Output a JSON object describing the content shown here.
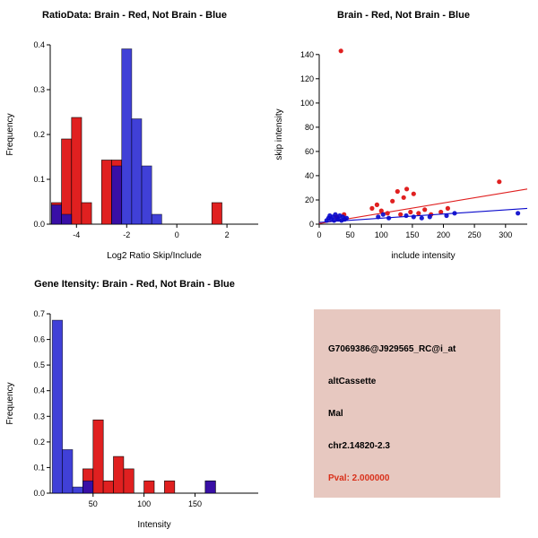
{
  "window": {
    "background": "#ffffff"
  },
  "colors": {
    "brain_red": "#E02020",
    "not_brain_blue": "#0A0ACC",
    "axis_black": "#000000",
    "pval_red": "#D9301A",
    "info_panel_bg": "#E7C8C0"
  },
  "chart_data": [
    {
      "id": "ratio-histogram",
      "type": "bar",
      "title": "RatioData: Brain - Red, Not Brain - Blue",
      "xlabel": "Log2 Ratio Skip/Include",
      "ylabel": "Frequency",
      "xlim": [
        -5.05,
        3.25
      ],
      "ylim": [
        0,
        0.4
      ],
      "xticks": [
        "-4",
        "-2",
        "0",
        "2"
      ],
      "yticks": [
        "0.0",
        "0.1",
        "0.2",
        "0.3",
        "0.4"
      ],
      "grid": false,
      "legend": "none (encoded in title: Brain=red, Not Brain=blue)",
      "series": [
        {
          "name": "Brain (red)",
          "color": "#E02020",
          "opacity": 1,
          "bars": [
            {
              "x0": -5.0,
              "x1": -4.6,
              "h": 0.048
            },
            {
              "x0": -4.6,
              "x1": -4.2,
              "h": 0.19
            },
            {
              "x0": -4.2,
              "x1": -3.8,
              "h": 0.238
            },
            {
              "x0": -3.8,
              "x1": -3.4,
              "h": 0.048
            },
            {
              "x0": -3.0,
              "x1": -2.6,
              "h": 0.143
            },
            {
              "x0": -2.6,
              "x1": -2.2,
              "h": 0.143
            },
            {
              "x0": 1.4,
              "x1": 1.8,
              "h": 0.048
            }
          ]
        },
        {
          "name": "Not Brain (blue)",
          "color": "#0A0ACC",
          "opacity": 0.78,
          "bars": [
            {
              "x0": -5.0,
              "x1": -4.6,
              "h": 0.043
            },
            {
              "x0": -4.6,
              "x1": -4.2,
              "h": 0.022
            },
            {
              "x0": -2.6,
              "x1": -2.2,
              "h": 0.13
            },
            {
              "x0": -2.2,
              "x1": -1.8,
              "h": 0.391
            },
            {
              "x0": -1.8,
              "x1": -1.4,
              "h": 0.235
            },
            {
              "x0": -1.4,
              "x1": -1.0,
              "h": 0.13
            },
            {
              "x0": -1.0,
              "x1": -0.6,
              "h": 0.022
            }
          ]
        }
      ]
    },
    {
      "id": "intensity-scatter",
      "type": "scatter",
      "title": "Brain - Red, Not Brain - Blue",
      "xlabel": "include intensity",
      "ylabel": "skip intensity",
      "xlim": [
        0,
        335
      ],
      "ylim": [
        0,
        148
      ],
      "xticks": [
        "0",
        "50",
        "100",
        "150",
        "200",
        "250",
        "300"
      ],
      "yticks": [
        "0",
        "20",
        "40",
        "60",
        "80",
        "100",
        "120",
        "140"
      ],
      "grid": false,
      "legend": "none (encoded in title: Brain=red, Not Brain=blue)",
      "series": [
        {
          "name": "Brain (red)",
          "color": "#E02020",
          "opacity": 1,
          "points": [
            [
              35,
              143
            ],
            [
              28,
              6
            ],
            [
              40,
              8
            ],
            [
              85,
              13
            ],
            [
              93,
              16
            ],
            [
              100,
              11
            ],
            [
              110,
              9
            ],
            [
              118,
              19
            ],
            [
              126,
              27
            ],
            [
              131,
              8
            ],
            [
              136,
              22
            ],
            [
              141,
              29
            ],
            [
              147,
              10
            ],
            [
              152,
              25
            ],
            [
              160,
              9
            ],
            [
              170,
              12
            ],
            [
              180,
              8
            ],
            [
              196,
              10
            ],
            [
              207,
              13
            ],
            [
              290,
              35
            ]
          ],
          "trend": {
            "x": [
              0,
              335
            ],
            "y": [
              0.5,
              29
            ]
          }
        },
        {
          "name": "Not Brain (blue)",
          "color": "#0A0ACC",
          "opacity": 0.92,
          "points": [
            [
              12,
              3
            ],
            [
              15,
              5
            ],
            [
              17,
              7
            ],
            [
              19,
              4
            ],
            [
              22,
              6
            ],
            [
              24,
              3
            ],
            [
              26,
              8
            ],
            [
              29,
              5
            ],
            [
              31,
              4
            ],
            [
              33,
              7
            ],
            [
              36,
              3
            ],
            [
              38,
              6
            ],
            [
              41,
              4
            ],
            [
              44,
              5
            ],
            [
              95,
              6
            ],
            [
              103,
              8
            ],
            [
              112,
              5
            ],
            [
              140,
              7
            ],
            [
              152,
              6
            ],
            [
              165,
              5
            ],
            [
              178,
              6
            ],
            [
              205,
              7
            ],
            [
              218,
              9
            ],
            [
              320,
              9
            ]
          ],
          "trend": {
            "x": [
              0,
              335
            ],
            "y": [
              1.5,
              13
            ]
          }
        }
      ]
    },
    {
      "id": "gene-intensity-histogram",
      "type": "bar",
      "title": "Gene Itensity: Brain - Red, Not Brain - Blue",
      "xlabel": "Intensity",
      "ylabel": "Frequency",
      "xlim": [
        8,
        212
      ],
      "ylim": [
        0,
        0.7
      ],
      "xticks": [
        "50",
        "100",
        "150"
      ],
      "yticks": [
        "0.0",
        "0.1",
        "0.2",
        "0.3",
        "0.4",
        "0.5",
        "0.6",
        "0.7"
      ],
      "grid": false,
      "legend": "none (encoded in title: Brain=red, Not Brain=blue)",
      "series": [
        {
          "name": "Brain (red)",
          "color": "#E02020",
          "opacity": 1,
          "bars": [
            {
              "x0": 40,
              "x1": 50,
              "h": 0.095
            },
            {
              "x0": 50,
              "x1": 60,
              "h": 0.286
            },
            {
              "x0": 60,
              "x1": 70,
              "h": 0.048
            },
            {
              "x0": 70,
              "x1": 80,
              "h": 0.143
            },
            {
              "x0": 80,
              "x1": 90,
              "h": 0.095
            },
            {
              "x0": 100,
              "x1": 110,
              "h": 0.048
            },
            {
              "x0": 120,
              "x1": 130,
              "h": 0.048
            },
            {
              "x0": 160,
              "x1": 170,
              "h": 0.048
            }
          ]
        },
        {
          "name": "Not Brain (blue)",
          "color": "#0A0ACC",
          "opacity": 0.78,
          "bars": [
            {
              "x0": 10,
              "x1": 20,
              "h": 0.675
            },
            {
              "x0": 20,
              "x1": 30,
              "h": 0.17
            },
            {
              "x0": 30,
              "x1": 40,
              "h": 0.024
            },
            {
              "x0": 40,
              "x1": 50,
              "h": 0.048
            },
            {
              "x0": 160,
              "x1": 170,
              "h": 0.048
            }
          ]
        }
      ]
    }
  ],
  "info_panel": {
    "background": "#E7C8C0",
    "lines": [
      {
        "text": "G7069386@J929565_RC@i_at",
        "color": "#000000"
      },
      {
        "text": "altCassette",
        "color": "#000000"
      },
      {
        "text": "Mal",
        "color": "#000000"
      },
      {
        "text": "chr2.14820-2.3",
        "color": "#000000"
      },
      {
        "text": "Pval: 2.000000",
        "color": "#D9301A"
      }
    ]
  }
}
